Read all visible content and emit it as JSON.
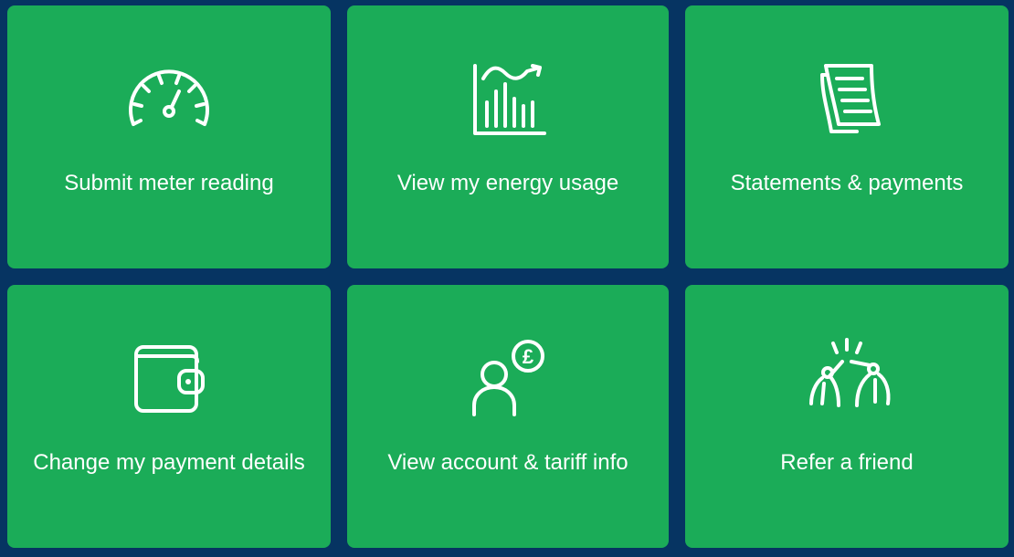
{
  "colors": {
    "background": "#063462",
    "tile": "#1bac58",
    "text": "#ffffff"
  },
  "tiles": [
    {
      "label": "Submit meter reading",
      "icon": "speedometer-icon"
    },
    {
      "label": "View my energy usage",
      "icon": "energy-chart-icon"
    },
    {
      "label": "Statements & payments",
      "icon": "documents-icon"
    },
    {
      "label": "Change my payment details",
      "icon": "wallet-icon"
    },
    {
      "label": "View account & tariff info",
      "icon": "account-pound-icon"
    },
    {
      "label": "Refer a friend",
      "icon": "high-five-icon"
    }
  ],
  "icon_glyphs": {
    "currency_symbol": "£"
  }
}
